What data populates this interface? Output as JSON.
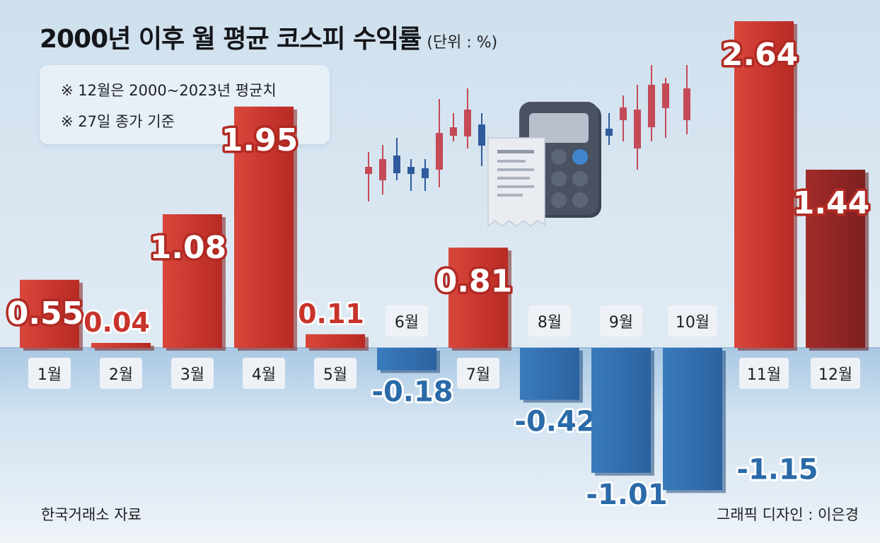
{
  "title": "2000년 이후 월 평균 코스피 수익률",
  "unit": "(단위 : %)",
  "notes": [
    "※ 12월은 2000~2023년 평균치",
    "※ 27일 종가 기준"
  ],
  "source": "한국거래소 자료",
  "credit": "그래픽 디자인 : 이은경",
  "colors": {
    "positive": "#c8342c",
    "positive_dark": "#8f2424",
    "negative": "#2f6fb0",
    "negative_label": "#2a6aa8",
    "label_box": "#eef2f7"
  },
  "chart_data": {
    "type": "bar",
    "title": "2000년 이후 월 평균 코스피 수익률",
    "unit": "%",
    "categories": [
      "1월",
      "2월",
      "3월",
      "4월",
      "5월",
      "6월",
      "7월",
      "8월",
      "9월",
      "10월",
      "11월",
      "12월"
    ],
    "values": [
      0.55,
      0.04,
      1.08,
      1.95,
      0.11,
      -0.18,
      0.81,
      -0.42,
      -1.01,
      -1.15,
      2.64,
      1.44
    ],
    "value_labels": [
      "0.55",
      "0.04",
      "1.08",
      "1.95",
      "0.11",
      "-0.18",
      "0.81",
      "-0.42",
      "-1.01",
      "-1.15",
      "2.64",
      "1.44"
    ],
    "highlight_category": "12월",
    "grid": false,
    "legend": "none"
  }
}
